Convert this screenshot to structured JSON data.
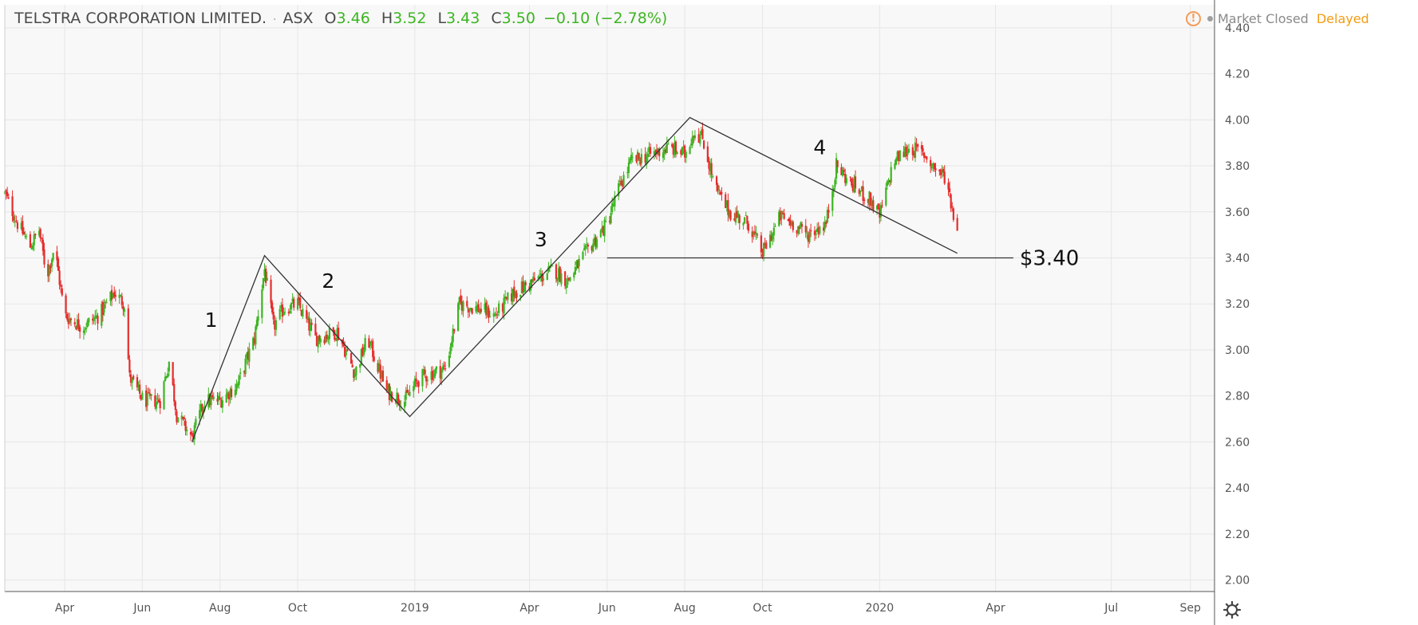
{
  "header": {
    "symbol_name": "TELSTRA CORPORATION LIMITED.",
    "separator": "·",
    "exchange": "ASX",
    "open_label": "O",
    "open_value": "3.46",
    "high_label": "H",
    "high_value": "3.52",
    "low_label": "L",
    "low_value": "3.43",
    "close_label": "C",
    "close_value": "3.50",
    "change": "−0.10 (−2.78%)"
  },
  "status": {
    "warning_glyph": "!",
    "market_state": "Market Closed",
    "delay": "Delayed"
  },
  "colors": {
    "up": "#3cb521",
    "down": "#e62c2c",
    "grid": "#e6e6e6",
    "axis_text": "#555555",
    "drawing": "#333333",
    "status_warning": "#f39c5a",
    "delayed": "#f39c12"
  },
  "chart_data": {
    "type": "candlestick",
    "xlabel": "",
    "ylabel": "",
    "ylim": [
      1.95,
      4.5
    ],
    "y_ticks": [
      "2.00",
      "2.20",
      "2.40",
      "2.60",
      "2.80",
      "3.00",
      "3.20",
      "3.40",
      "3.60",
      "3.80",
      "4.00",
      "4.20",
      "4.40"
    ],
    "x_tick_labels": [
      "Apr",
      "Jun",
      "Aug",
      "Oct",
      "2019",
      "Apr",
      "Jun",
      "Aug",
      "Oct",
      "2020",
      "Apr",
      "Jul",
      "Sep"
    ],
    "x_tick_dates": [
      "2018-04-01",
      "2018-06-01",
      "2018-08-01",
      "2018-10-01",
      "2019-01-01",
      "2019-04-01",
      "2019-06-01",
      "2019-08-01",
      "2019-10-01",
      "2020-01-01",
      "2020-04-01",
      "2020-07-01",
      "2020-09-01"
    ],
    "x_range": [
      "2018-02-13",
      "2020-09-20"
    ],
    "grid": true,
    "price_path": [
      [
        "2018-02-13",
        3.68
      ],
      [
        "2018-02-23",
        3.55
      ],
      [
        "2018-03-05",
        3.45
      ],
      [
        "2018-03-12",
        3.52
      ],
      [
        "2018-03-18",
        3.32
      ],
      [
        "2018-03-24",
        3.45
      ],
      [
        "2018-04-01",
        3.15
      ],
      [
        "2018-04-15",
        3.1
      ],
      [
        "2018-04-28",
        3.15
      ],
      [
        "2018-05-10",
        3.25
      ],
      [
        "2018-05-18",
        3.2
      ],
      [
        "2018-05-22",
        2.88
      ],
      [
        "2018-06-02",
        2.78
      ],
      [
        "2018-06-15",
        2.78
      ],
      [
        "2018-06-22",
        2.95
      ],
      [
        "2018-06-28",
        2.72
      ],
      [
        "2018-07-10",
        2.62
      ],
      [
        "2018-07-20",
        2.78
      ],
      [
        "2018-08-01",
        2.78
      ],
      [
        "2018-08-15",
        2.85
      ],
      [
        "2018-08-28",
        3.05
      ],
      [
        "2018-09-05",
        3.35
      ],
      [
        "2018-09-12",
        3.1
      ],
      [
        "2018-09-20",
        3.18
      ],
      [
        "2018-10-01",
        3.2
      ],
      [
        "2018-10-15",
        3.05
      ],
      [
        "2018-11-01",
        3.08
      ],
      [
        "2018-11-15",
        2.9
      ],
      [
        "2018-11-25",
        3.05
      ],
      [
        "2018-12-10",
        2.82
      ],
      [
        "2018-12-24",
        2.78
      ],
      [
        "2019-01-05",
        2.88
      ],
      [
        "2019-01-25",
        2.92
      ],
      [
        "2019-02-05",
        3.2
      ],
      [
        "2019-02-20",
        3.18
      ],
      [
        "2019-03-05",
        3.15
      ],
      [
        "2019-03-20",
        3.25
      ],
      [
        "2019-04-05",
        3.3
      ],
      [
        "2019-04-20",
        3.35
      ],
      [
        "2019-05-01",
        3.3
      ],
      [
        "2019-05-15",
        3.42
      ],
      [
        "2019-06-01",
        3.55
      ],
      [
        "2019-06-10",
        3.7
      ],
      [
        "2019-06-20",
        3.82
      ],
      [
        "2019-07-05",
        3.85
      ],
      [
        "2019-07-20",
        3.88
      ],
      [
        "2019-08-01",
        3.85
      ],
      [
        "2019-08-08",
        3.95
      ],
      [
        "2019-08-15",
        3.92
      ],
      [
        "2019-08-25",
        3.7
      ],
      [
        "2019-09-05",
        3.6
      ],
      [
        "2019-09-20",
        3.55
      ],
      [
        "2019-10-01",
        3.42
      ],
      [
        "2019-10-15",
        3.58
      ],
      [
        "2019-10-25",
        3.55
      ],
      [
        "2019-11-05",
        3.5
      ],
      [
        "2019-11-20",
        3.55
      ],
      [
        "2019-11-28",
        3.8
      ],
      [
        "2019-12-10",
        3.72
      ],
      [
        "2019-12-25",
        3.65
      ],
      [
        "2020-01-01",
        3.58
      ],
      [
        "2020-01-12",
        3.82
      ],
      [
        "2020-01-25",
        3.88
      ],
      [
        "2020-02-05",
        3.85
      ],
      [
        "2020-02-15",
        3.78
      ],
      [
        "2020-02-22",
        3.75
      ],
      [
        "2020-02-27",
        3.62
      ],
      [
        "2020-03-02",
        3.5
      ]
    ],
    "drawings": {
      "zigzag": [
        [
          "2018-07-10",
          2.6
        ],
        [
          "2018-09-05",
          3.41
        ],
        [
          "2018-12-28",
          2.71
        ],
        [
          "2019-08-05",
          4.01
        ],
        [
          "2020-03-02",
          3.42
        ]
      ],
      "horizontal_line": {
        "price": 3.4,
        "start": "2019-06-01",
        "end": "2020-04-15"
      }
    },
    "annotations": [
      {
        "text": "1",
        "date": "2018-07-25",
        "price": 3.1
      },
      {
        "text": "2",
        "date": "2018-10-25",
        "price": 3.27
      },
      {
        "text": "3",
        "date": "2019-04-10",
        "price": 3.45
      },
      {
        "text": "4",
        "date": "2019-11-15",
        "price": 3.85
      },
      {
        "text": "$3.40",
        "date": "2020-04-20",
        "price": 3.4
      }
    ]
  }
}
